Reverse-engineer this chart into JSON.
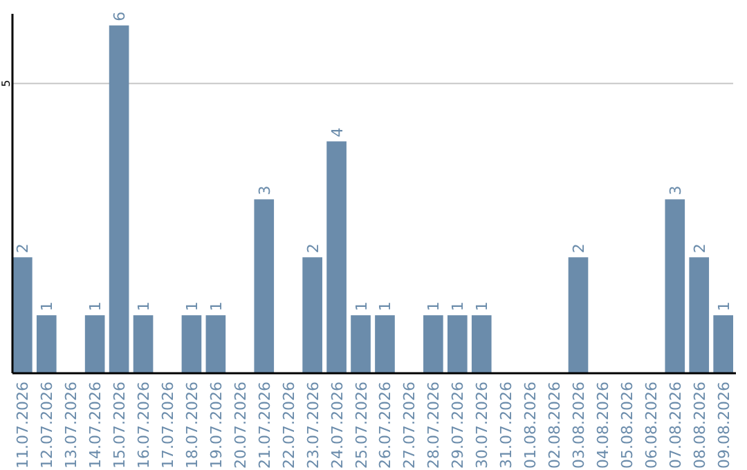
{
  "chart_data": {
    "type": "bar",
    "categories": [
      "11.07.2026",
      "12.07.2026",
      "13.07.2026",
      "14.07.2026",
      "15.07.2026",
      "16.07.2026",
      "17.07.2026",
      "18.07.2026",
      "19.07.2026",
      "20.07.2026",
      "21.07.2026",
      "22.07.2026",
      "23.07.2026",
      "24.07.2026",
      "25.07.2026",
      "26.07.2026",
      "27.07.2026",
      "28.07.2026",
      "29.07.2026",
      "30.07.2026",
      "31.07.2026",
      "01.08.2026",
      "02.08.2026",
      "03.08.2026",
      "04.08.2026",
      "05.08.2026",
      "06.08.2026",
      "07.08.2026",
      "08.08.2026",
      "09.08.2026"
    ],
    "values": [
      2,
      1,
      0,
      1,
      6,
      1,
      0,
      1,
      1,
      0,
      3,
      0,
      2,
      4,
      1,
      1,
      0,
      1,
      1,
      1,
      0,
      0,
      0,
      2,
      0,
      0,
      0,
      3,
      2,
      1
    ],
    "value_labels": [
      "2",
      "1",
      null,
      "1",
      "6",
      "1",
      null,
      "1",
      "1",
      null,
      "3",
      null,
      "2",
      "4",
      "1",
      "1",
      null,
      "1",
      "1",
      "1",
      null,
      null,
      null,
      "2",
      null,
      null,
      null,
      "3",
      "2",
      "1"
    ],
    "color": "#6b8cab",
    "ylim": [
      0,
      6.2
    ],
    "yticks": [
      5
    ],
    "grid": "y"
  }
}
